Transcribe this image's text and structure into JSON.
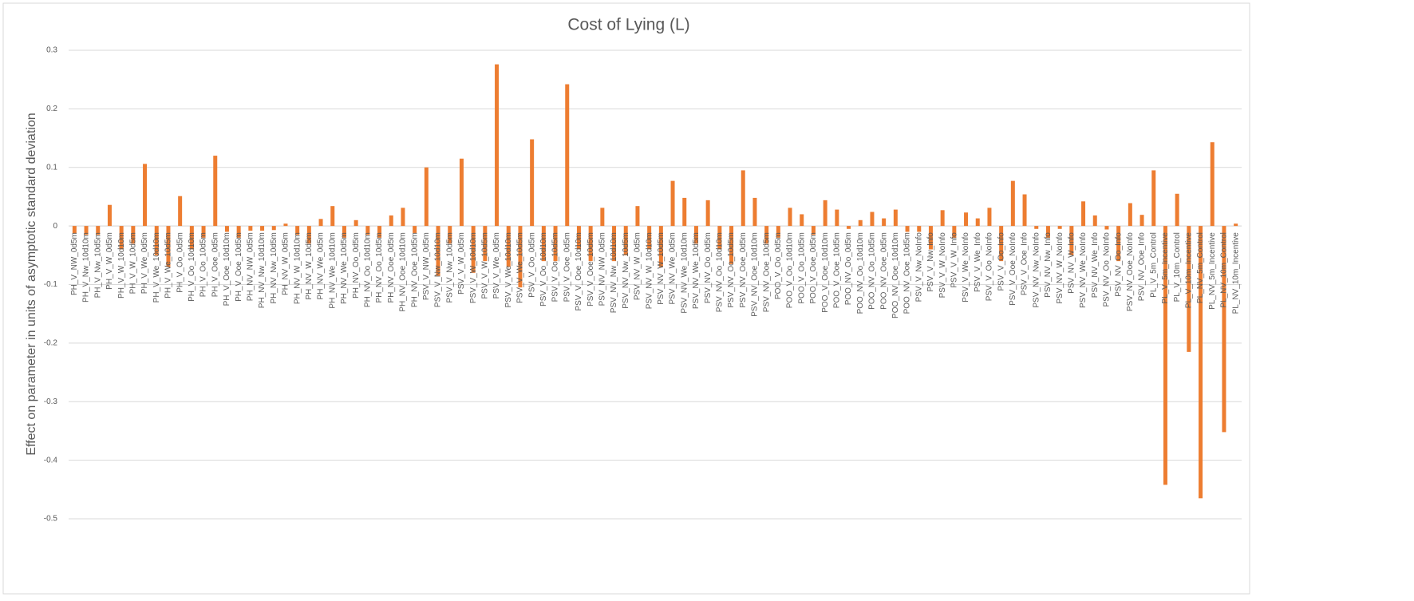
{
  "chart_data": {
    "type": "bar",
    "title": "Cost of Lying (L)",
    "y_label": "Effect on parameter in units of asymptotic standard deviation",
    "color": "#ed7d31",
    "grid": true,
    "ylim": [
      -0.5,
      0.3
    ],
    "yticks": [
      -0.5,
      -0.4,
      -0.3,
      -0.2,
      -0.1,
      0,
      0.1,
      0.2,
      0.3
    ],
    "categories": [
      "PH_V_NW_0d5m",
      "PH_V_Nw_10d10m",
      "PH_V_Nw_10d5m",
      "PH_V_W_0d5m",
      "PH_V_W_10d10m",
      "PH_V_W_10d5m",
      "PH_V_We_0d5m",
      "PH_V_We_10d10m",
      "PH_V_We_10d5m",
      "PH_V_Oo_0d5m",
      "PH_V_Oo_10d10m",
      "PH_V_Oo_10d5m",
      "PH_V_Ooe_0d5m",
      "PH_V_Ooe_10d10m",
      "PH_V_Ooe_10d5m",
      "PH_NV_NW_0d5m",
      "PH_NV_Nw_10d10m",
      "PH_NV_Nw_10d5m",
      "PH_NV_W_0d5m",
      "PH_NV_W_10d10m",
      "PH_NV_W_10d5m",
      "PH_NV_We_0d5m",
      "PH_NV_We_10d10m",
      "PH_NV_We_10d5m",
      "PH_NV_Oo_0d5m",
      "PH_NV_Oo_10d10m",
      "PH_NV_Oo_10d5m",
      "PH_NV_Ooe_0d5m",
      "PH_NV_Ooe_10d10m",
      "PH_NV_Ooe_10d5m",
      "PSV_V_NW_0d5m",
      "PSV_V_Nw_10d10m",
      "PSV_V_Nw_10d5m",
      "PSV_V_W_0d5m",
      "PSV_V_W_10d10m",
      "PSV_V_W_10d5m",
      "PSV_V_We_0d5m",
      "PSV_V_We_10d10m",
      "PSV_V_We_10d5m",
      "PSV_V_Oo_0d5m",
      "PSV_V_Oo_10d10m",
      "PSV_V_Oo_10d5m",
      "PSV_V_Ooe_0d5m",
      "PSV_V_Ooe_10d10m",
      "PSV_V_Ooe_10d5m",
      "PSV_NV_NW_0d5m",
      "PSV_NV_Nw_10d10m",
      "PSV_NV_Nw_10d5m",
      "PSV_NV_W_0d5m",
      "PSV_NV_W_10d10m",
      "PSV_NV_W_10d5m",
      "PSV_NV_We_0d5m",
      "PSV_NV_We_10d10m",
      "PSV_NV_We_10d5m",
      "PSV_NV_Oo_0d5m",
      "PSV_NV_Oo_10d10m",
      "PSV_NV_Oo_10d5m",
      "PSV_NV_Ooe_0d5m",
      "PSV_NV_Ooe_10d10m",
      "PSV_NV_Ooe_10d5m",
      "POO_V_Oo_0d5m",
      "POO_V_Oo_10d10m",
      "POO_V_Oo_10d5m",
      "POO_V_Ooe_0d5m",
      "POO_V_Ooe_10d10m",
      "POO_V_Ooe_10d5m",
      "POO_NV_Oo_0d5m",
      "POO_NV_Oo_10d10m",
      "POO_NV_Oo_10d5m",
      "POO_NV_Ooe_0d5m",
      "POO_NV_Ooe_10d10m",
      "POO_NV_Ooe_10d5m",
      "PSV_V_Nw_NoInfo",
      "PSV_V_Nw_Info",
      "PSV_V_W_NoInfo",
      "PSV_V_W_Info",
      "PSV_V_We_NoInfo",
      "PSV_V_We_Info",
      "PSV_V_Oo_NoInfo",
      "PSV_V_Oo_Info",
      "PSV_V_Ooe_NoInfo",
      "PSV_V_Ooe_Info",
      "PSV_NV_Nw_NoInfo",
      "PSV_NV_Nw_Info",
      "PSV_NV_W_NoInfo",
      "PSV_NV_W_Info",
      "PSV_NV_We_NoInfo",
      "PSV_NV_We_Info",
      "PSV_NV_Oo_NoInfo",
      "PSV_NV_Oo_Info",
      "PSV_NV_Ooe_NoInfo",
      "PSV_NV_Ooe_Info",
      "PL_V_5m_Control",
      "PL_V_5m_Incentive",
      "PL_V_10m_Control",
      "PL_V_10m_Incentive",
      "PL_NV_5m_Control",
      "PL_NV_5m_Incentive",
      "PL_NV_10m_Control",
      "PL_NV_10m_Incentive"
    ],
    "values": [
      -0.013,
      -0.015,
      -0.015,
      0.036,
      -0.04,
      -0.03,
      0.106,
      -0.05,
      -0.07,
      0.051,
      -0.04,
      -0.02,
      0.12,
      -0.01,
      -0.02,
      -0.008,
      -0.008,
      -0.007,
      0.004,
      -0.015,
      -0.03,
      0.012,
      0.034,
      -0.02,
      0.01,
      -0.015,
      -0.02,
      0.018,
      0.031,
      -0.012,
      0.1,
      -0.085,
      -0.03,
      0.115,
      -0.08,
      -0.06,
      0.276,
      -0.07,
      -0.105,
      0.148,
      -0.06,
      -0.06,
      0.242,
      -0.04,
      -0.06,
      0.031,
      -0.06,
      -0.05,
      0.034,
      -0.04,
      -0.07,
      0.077,
      0.048,
      -0.03,
      0.044,
      -0.04,
      -0.065,
      0.095,
      0.048,
      -0.03,
      -0.02,
      0.031,
      0.02,
      -0.015,
      0.044,
      0.028,
      -0.005,
      0.01,
      0.024,
      0.013,
      0.028,
      -0.01,
      -0.01,
      -0.04,
      0.027,
      -0.02,
      0.023,
      0.013,
      0.031,
      -0.06,
      0.077,
      0.054,
      -0.005,
      -0.02,
      -0.005,
      -0.05,
      0.042,
      0.018,
      -0.006,
      -0.06,
      0.039,
      0.019,
      0.095,
      -0.442,
      0.055,
      -0.215,
      -0.465,
      0.143,
      -0.352,
      0.004
    ]
  }
}
